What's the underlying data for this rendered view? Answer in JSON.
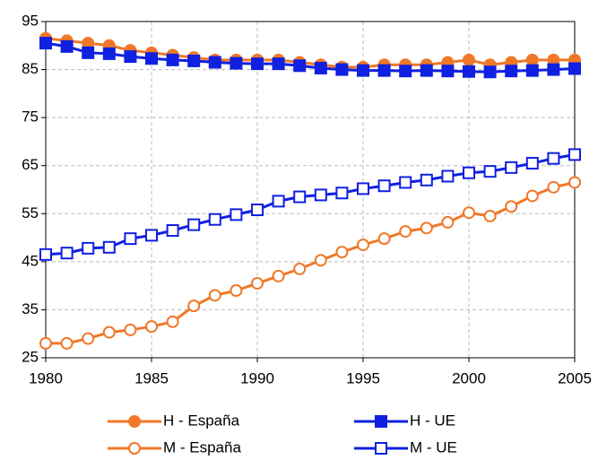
{
  "chart_data": {
    "type": "line",
    "x": [
      1980,
      1981,
      1982,
      1983,
      1984,
      1985,
      1986,
      1987,
      1988,
      1989,
      1990,
      1991,
      1992,
      1993,
      1994,
      1995,
      1996,
      1997,
      1998,
      1999,
      2000,
      2001,
      2002,
      2003,
      2004,
      2005
    ],
    "xlim": [
      1980,
      2005
    ],
    "xticks": [
      1980,
      1985,
      1990,
      1995,
      2000,
      2005
    ],
    "ylim": [
      25,
      95
    ],
    "yticks": [
      25,
      35,
      45,
      55,
      65,
      75,
      85,
      95
    ],
    "grid": true,
    "series": [
      {
        "name": "H - España",
        "color": "#f07828",
        "marker": "circle",
        "filled": true,
        "values": [
          91.5,
          91,
          90.5,
          90,
          89,
          88.5,
          88,
          87.5,
          87,
          87,
          87,
          87,
          86.5,
          86,
          85.5,
          85.5,
          86,
          86,
          86,
          86.5,
          87,
          86,
          86.5,
          87,
          87,
          87
        ]
      },
      {
        "name": "H - UE",
        "color": "#1020e0",
        "marker": "square",
        "filled": true,
        "values": [
          90.5,
          89.8,
          88.5,
          88.3,
          87.7,
          87.3,
          87,
          86.8,
          86.5,
          86.3,
          86.2,
          86.2,
          85.8,
          85.3,
          85,
          84.8,
          84.8,
          84.7,
          84.8,
          84.7,
          84.6,
          84.5,
          84.7,
          84.8,
          85,
          85.2
        ]
      },
      {
        "name": "M - España",
        "color": "#f07828",
        "marker": "circle",
        "filled": false,
        "values": [
          28,
          28,
          29,
          30.3,
          30.8,
          31.5,
          32.5,
          35.8,
          38,
          39,
          40.5,
          42,
          43.5,
          45.3,
          47,
          48.5,
          49.8,
          51.3,
          52,
          53.2,
          55.2,
          54.5,
          56.5,
          58.7,
          60.5,
          61.5
        ]
      },
      {
        "name": "M - UE",
        "color": "#1020e0",
        "marker": "square",
        "filled": false,
        "values": [
          46.5,
          46.8,
          47.8,
          48,
          49.8,
          50.5,
          51.5,
          52.7,
          53.8,
          54.8,
          55.8,
          57.6,
          58.5,
          58.9,
          59.3,
          60.2,
          60.8,
          61.5,
          62,
          62.8,
          63.5,
          63.8,
          64.6,
          65.5,
          66.5,
          67.3
        ]
      }
    ]
  }
}
